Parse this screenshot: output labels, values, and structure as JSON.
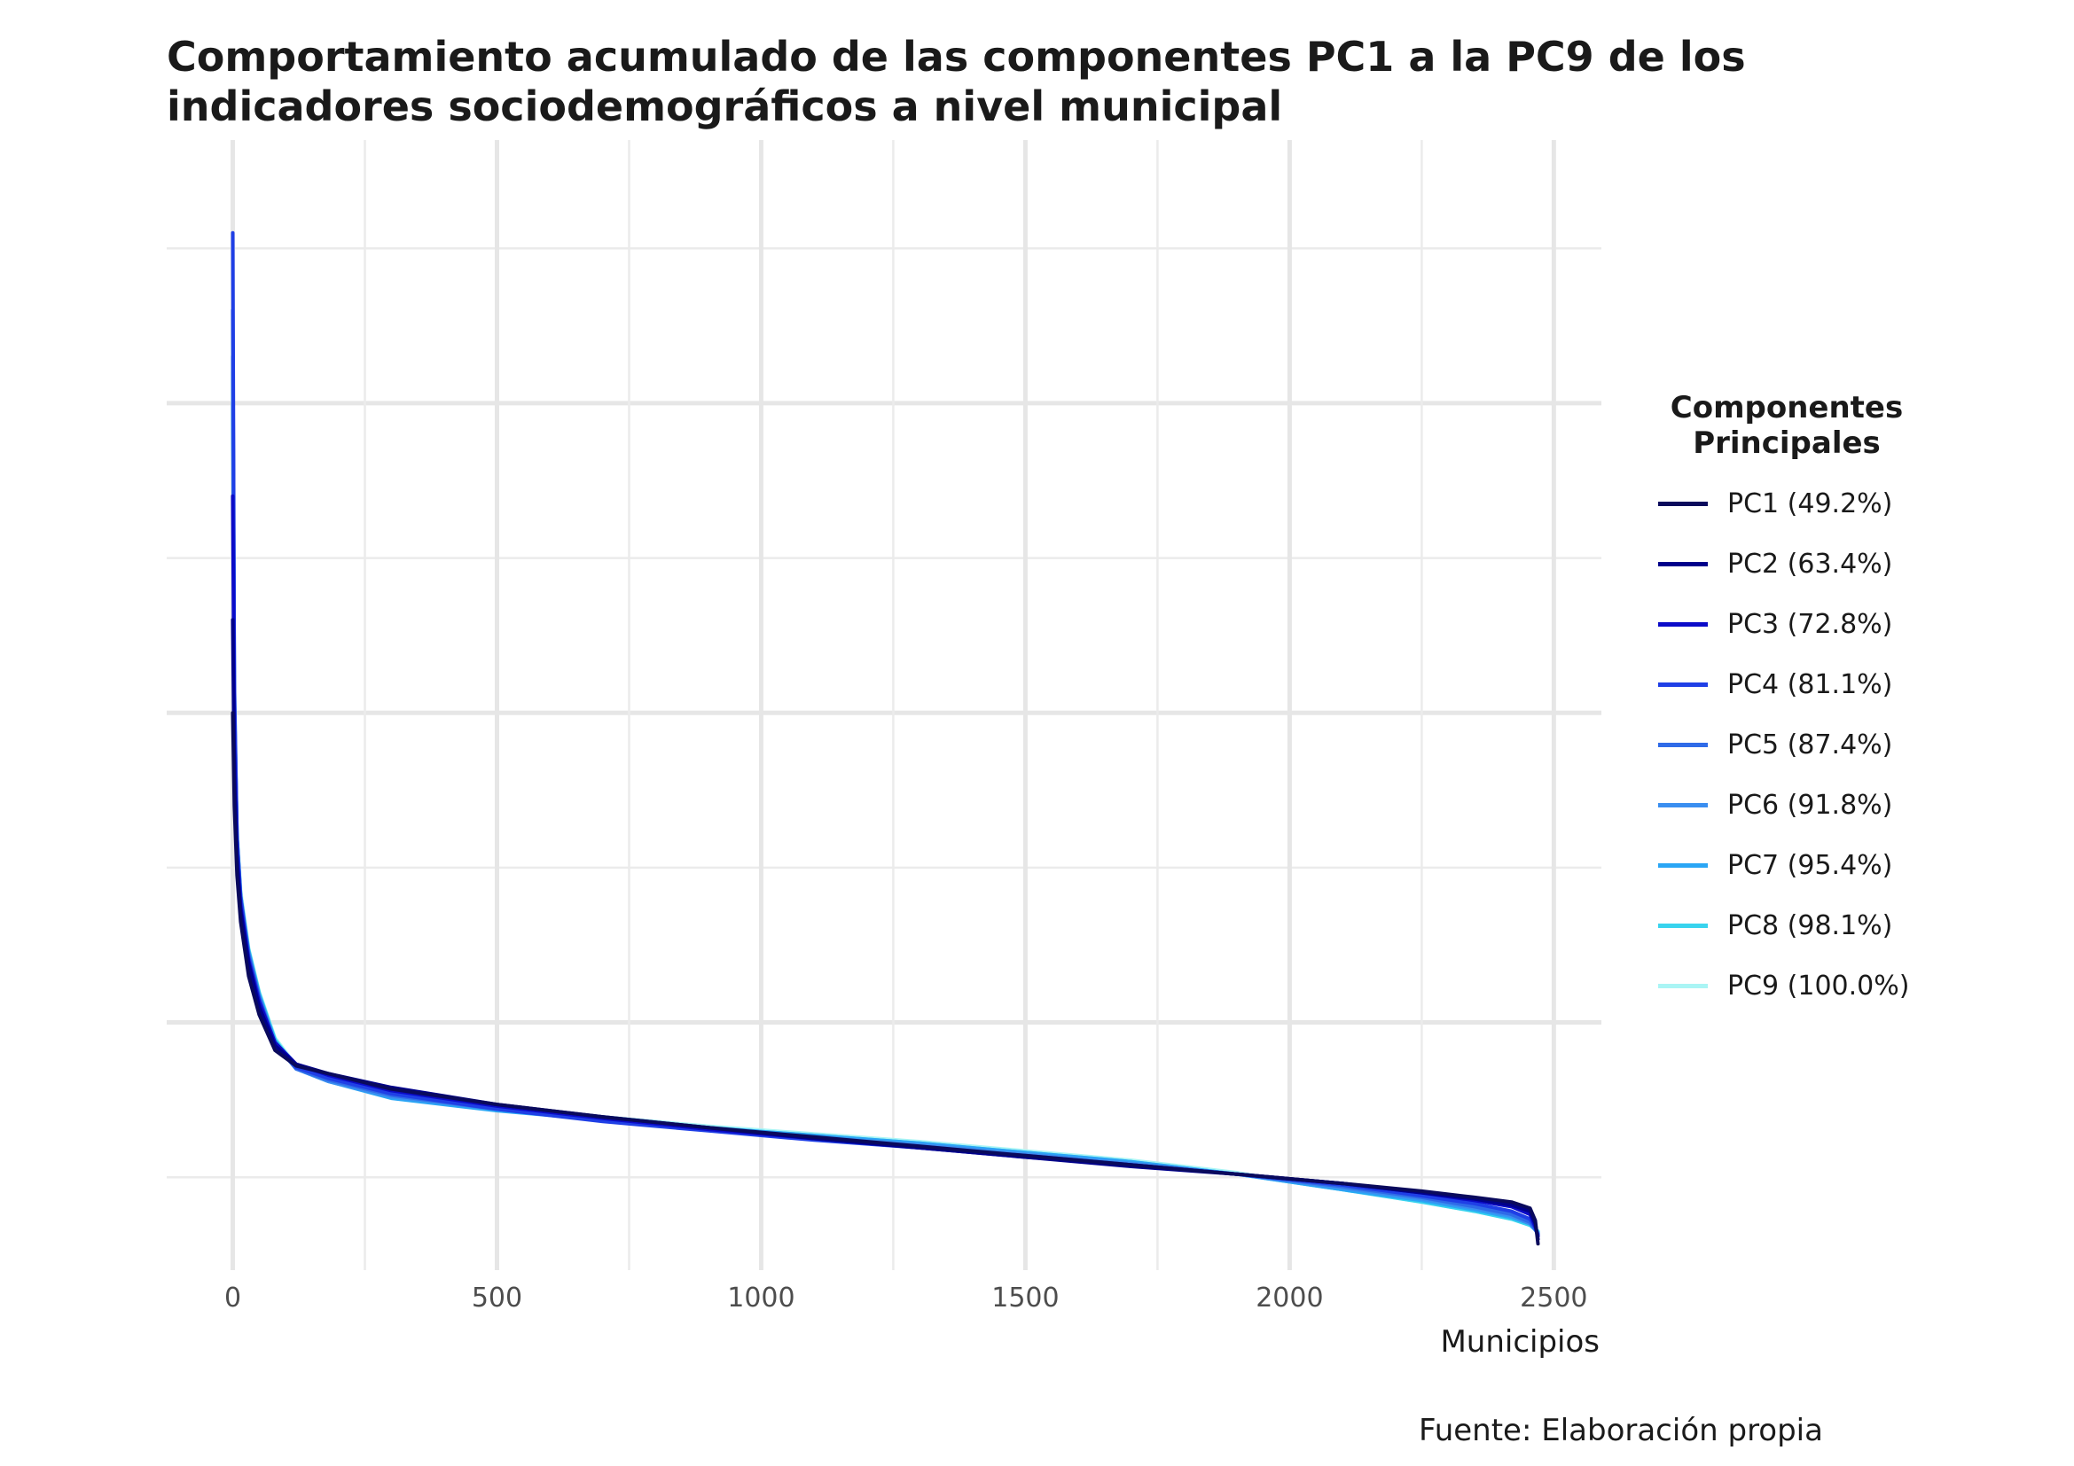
{
  "chart_data": {
    "type": "line",
    "title_lines": [
      "Comportamiento acumulado de las componentes PC1 a la PC9 de los",
      "indicadores sociodemográficos a nivel municipal"
    ],
    "xlabel": "Municipios",
    "ylabel": "",
    "xlim": [
      -125,
      2590
    ],
    "ylim": [
      -1.6,
      5.7
    ],
    "x_ticks": [
      0,
      500,
      1000,
      1500,
      2000,
      2500
    ],
    "x_tick_labels": [
      "0",
      "500",
      "1000",
      "1500",
      "2000",
      "2500"
    ],
    "y_gridlines_major": [
      0,
      2,
      4
    ],
    "y_gridlines_minor": [
      -1,
      1,
      3,
      5
    ],
    "y_tick_labels_shown": false,
    "grid": true,
    "legend_position": "right",
    "legend_title_lines": [
      "Componentes",
      "Principales"
    ],
    "series": [
      {
        "name": "PC1 (49.2%)",
        "color": "#0a0a5c",
        "x": [
          0,
          3,
          8,
          15,
          30,
          50,
          80,
          120,
          180,
          300,
          500,
          700,
          900,
          1100,
          1300,
          1500,
          1700,
          1900,
          2100,
          2250,
          2350,
          2420,
          2455,
          2465,
          2470
        ],
        "y": [
          2.0,
          1.4,
          0.95,
          0.65,
          0.3,
          0.05,
          -0.18,
          -0.28,
          -0.33,
          -0.43,
          -0.53,
          -0.61,
          -0.68,
          -0.74,
          -0.8,
          -0.86,
          -0.92,
          -0.98,
          -1.04,
          -1.09,
          -1.13,
          -1.16,
          -1.2,
          -1.28,
          -1.43
        ]
      },
      {
        "name": "PC2 (63.4%)",
        "color": "#00008b",
        "x": [
          0,
          3,
          8,
          15,
          30,
          50,
          80,
          120,
          180,
          300,
          500,
          700,
          900,
          1100,
          1300,
          1500,
          1700,
          1900,
          2100,
          2250,
          2350,
          2420,
          2455,
          2465,
          2470
        ],
        "y": [
          2.6,
          1.6,
          1.05,
          0.72,
          0.38,
          0.1,
          -0.15,
          -0.27,
          -0.33,
          -0.42,
          -0.53,
          -0.61,
          -0.68,
          -0.75,
          -0.81,
          -0.87,
          -0.93,
          -0.98,
          -1.04,
          -1.1,
          -1.14,
          -1.18,
          -1.22,
          -1.3,
          -1.4
        ]
      },
      {
        "name": "PC3 (72.8%)",
        "color": "#0b0bc8",
        "x": [
          0,
          3,
          8,
          15,
          30,
          50,
          80,
          120,
          180,
          300,
          500,
          700,
          900,
          1100,
          1300,
          1500,
          1700,
          1900,
          2100,
          2250,
          2350,
          2420,
          2455,
          2465,
          2470
        ],
        "y": [
          3.4,
          1.8,
          1.1,
          0.75,
          0.4,
          0.13,
          -0.13,
          -0.27,
          -0.34,
          -0.44,
          -0.54,
          -0.62,
          -0.69,
          -0.75,
          -0.81,
          -0.87,
          -0.92,
          -0.98,
          -1.04,
          -1.1,
          -1.15,
          -1.19,
          -1.24,
          -1.32,
          -1.38
        ]
      },
      {
        "name": "PC4 (81.1%)",
        "color": "#1f3fe6",
        "x": [
          0,
          3,
          8,
          15,
          30,
          50,
          80,
          120,
          180,
          300,
          500,
          700,
          900,
          1100,
          1300,
          1500,
          1700,
          1900,
          2100,
          2250,
          2350,
          2420,
          2455,
          2465,
          2470
        ],
        "y": [
          5.1,
          2.2,
          1.2,
          0.8,
          0.42,
          0.15,
          -0.14,
          -0.29,
          -0.36,
          -0.46,
          -0.56,
          -0.64,
          -0.7,
          -0.76,
          -0.81,
          -0.86,
          -0.92,
          -0.98,
          -1.05,
          -1.12,
          -1.17,
          -1.22,
          -1.27,
          -1.33,
          -1.37
        ]
      },
      {
        "name": "PC5 (87.4%)",
        "color": "#2f6be8",
        "x": [
          0,
          3,
          8,
          15,
          30,
          50,
          80,
          120,
          180,
          300,
          500,
          700,
          900,
          1100,
          1300,
          1500,
          1700,
          1900,
          2100,
          2250,
          2350,
          2420,
          2455,
          2465,
          2470
        ],
        "y": [
          4.6,
          2.1,
          1.2,
          0.82,
          0.44,
          0.16,
          -0.14,
          -0.3,
          -0.37,
          -0.47,
          -0.56,
          -0.63,
          -0.69,
          -0.75,
          -0.8,
          -0.86,
          -0.92,
          -0.98,
          -1.06,
          -1.13,
          -1.19,
          -1.24,
          -1.29,
          -1.34,
          -1.37
        ]
      },
      {
        "name": "PC6 (91.8%)",
        "color": "#3a8ef0",
        "x": [
          0,
          3,
          8,
          15,
          30,
          50,
          80,
          120,
          180,
          300,
          500,
          700,
          900,
          1100,
          1300,
          1500,
          1700,
          1900,
          2100,
          2250,
          2350,
          2420,
          2455,
          2465,
          2470
        ],
        "y": [
          4.3,
          2.0,
          1.15,
          0.8,
          0.45,
          0.17,
          -0.13,
          -0.3,
          -0.38,
          -0.48,
          -0.56,
          -0.63,
          -0.69,
          -0.74,
          -0.79,
          -0.85,
          -0.91,
          -0.98,
          -1.07,
          -1.14,
          -1.2,
          -1.25,
          -1.3,
          -1.34,
          -1.36
        ]
      },
      {
        "name": "PC7 (95.4%)",
        "color": "#2aa6f5",
        "x": [
          0,
          3,
          8,
          15,
          30,
          50,
          80,
          120,
          180,
          300,
          500,
          700,
          900,
          1100,
          1300,
          1500,
          1700,
          1900,
          2100,
          2250,
          2350,
          2420,
          2455,
          2465,
          2470
        ],
        "y": [
          4.0,
          2.0,
          1.15,
          0.8,
          0.46,
          0.18,
          -0.12,
          -0.3,
          -0.38,
          -0.49,
          -0.57,
          -0.63,
          -0.68,
          -0.73,
          -0.78,
          -0.84,
          -0.9,
          -0.98,
          -1.08,
          -1.15,
          -1.21,
          -1.26,
          -1.3,
          -1.34,
          -1.36
        ]
      },
      {
        "name": "PC8 (98.1%)",
        "color": "#38d3ee",
        "x": [
          0,
          3,
          8,
          15,
          30,
          50,
          80,
          120,
          180,
          300,
          500,
          700,
          900,
          1100,
          1300,
          1500,
          1700,
          1900,
          2100,
          2250,
          2350,
          2420,
          2455,
          2465,
          2470
        ],
        "y": [
          4.2,
          2.1,
          1.2,
          0.82,
          0.47,
          0.19,
          -0.11,
          -0.29,
          -0.37,
          -0.48,
          -0.56,
          -0.62,
          -0.68,
          -0.73,
          -0.78,
          -0.84,
          -0.9,
          -0.98,
          -1.08,
          -1.16,
          -1.22,
          -1.27,
          -1.31,
          -1.34,
          -1.35
        ]
      },
      {
        "name": "PC9 (100.0%)",
        "color": "#aaf5f5",
        "x": [
          0,
          3,
          8,
          15,
          30,
          50,
          80,
          120,
          180,
          300,
          500,
          700,
          900,
          1100,
          1300,
          1500,
          1700,
          1900,
          2100,
          2250,
          2350,
          2420,
          2455,
          2465,
          2470
        ],
        "y": [
          4.4,
          2.2,
          1.25,
          0.85,
          0.48,
          0.2,
          -0.1,
          -0.28,
          -0.36,
          -0.47,
          -0.55,
          -0.61,
          -0.67,
          -0.72,
          -0.77,
          -0.83,
          -0.89,
          -0.97,
          -1.08,
          -1.16,
          -1.22,
          -1.27,
          -1.31,
          -1.33,
          -1.35
        ]
      }
    ]
  },
  "source_note": "Fuente: Elaboración propia"
}
